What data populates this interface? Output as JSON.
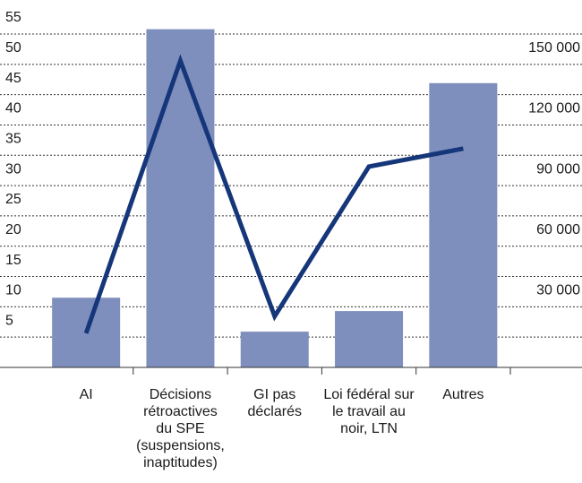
{
  "chart_data": {
    "type": "bar",
    "categories": [
      "AI",
      "Décisions rétroactives du SPE (suspensions, inaptitudes)",
      "GI pas déclarés",
      "Loi fédéral sur le travail au noir, LTN",
      "Autres"
    ],
    "series": [
      {
        "type": "bar",
        "axis": "y",
        "color": "#7f8fbd",
        "values": [
          11.5,
          55.8,
          5.9,
          9.3,
          46.9
        ]
      },
      {
        "type": "line",
        "axis": "y2",
        "color": "#16367a",
        "values": [
          16900,
          151800,
          25300,
          99400,
          108300
        ]
      }
    ],
    "ylim": [
      0,
      55
    ],
    "yticks": [
      5,
      10,
      15,
      20,
      25,
      30,
      35,
      40,
      45,
      50,
      55
    ],
    "y2lim": [
      0,
      165000
    ],
    "y2ticks": [
      {
        "value": 30000,
        "label": "30 000"
      },
      {
        "value": 60000,
        "label": "60 000"
      },
      {
        "value": 90000,
        "label": "90 000"
      },
      {
        "value": 120000,
        "label": "120 000"
      },
      {
        "value": 150000,
        "label": "150 000"
      }
    ],
    "grid": true
  }
}
